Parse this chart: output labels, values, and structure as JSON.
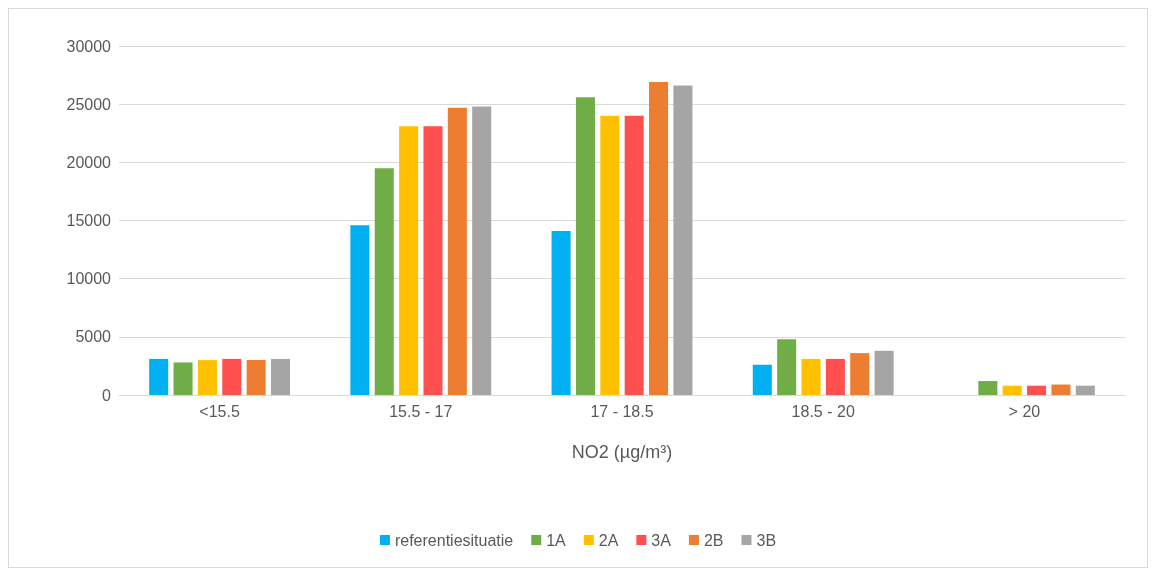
{
  "chart_data": {
    "type": "bar",
    "xlabel": "NO2 (µg/m³)",
    "categories": [
      "<15.5",
      "15.5 - 17",
      "17 - 18.5",
      "18.5 - 20",
      "> 20"
    ],
    "series": [
      {
        "name": "referentiesituatie",
        "color": "#00b0f0",
        "values": [
          3100,
          14600,
          14100,
          2600,
          0
        ]
      },
      {
        "name": "1A",
        "color": "#70ad47",
        "values": [
          2800,
          19500,
          25600,
          4800,
          1200
        ]
      },
      {
        "name": "2A",
        "color": "#ffc000",
        "values": [
          3000,
          23100,
          24000,
          3100,
          800
        ]
      },
      {
        "name": "3A",
        "color": "#ff4f4f",
        "values": [
          3100,
          23100,
          24000,
          3100,
          800
        ]
      },
      {
        "name": "2B",
        "color": "#ed7d31",
        "values": [
          3000,
          24700,
          26900,
          3600,
          900
        ]
      },
      {
        "name": "3B",
        "color": "#a5a5a5",
        "values": [
          3100,
          24800,
          26600,
          3800,
          800
        ]
      }
    ],
    "ylim": [
      0,
      30000
    ],
    "yticks": [
      0,
      5000,
      10000,
      15000,
      20000,
      25000,
      30000
    ],
    "grid": "y",
    "legend": "bottom"
  }
}
